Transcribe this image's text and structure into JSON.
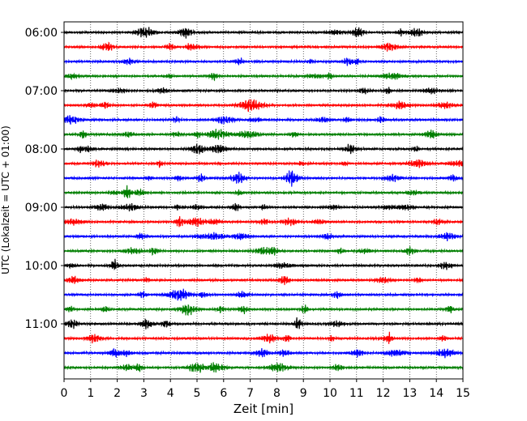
{
  "chart_data": {
    "type": "line",
    "title": "",
    "xlabel": "Zeit  [min]",
    "ylabel": "UTC (Lokalzeit = UTC + 01:00)",
    "xlim": [
      0,
      15
    ],
    "x_ticks": [
      0,
      1,
      2,
      3,
      4,
      5,
      6,
      7,
      8,
      9,
      10,
      11,
      12,
      13,
      14,
      15
    ],
    "y_tick_labels": [
      "06:00",
      "07:00",
      "08:00",
      "09:00",
      "10:00",
      "11:00"
    ],
    "grid": "vertical-dotted",
    "trace_colors": [
      "#000000",
      "#ff0000",
      "#0000ff",
      "#007f00"
    ],
    "trace_count": 24,
    "trace_minutes": 15,
    "legend": "none"
  }
}
